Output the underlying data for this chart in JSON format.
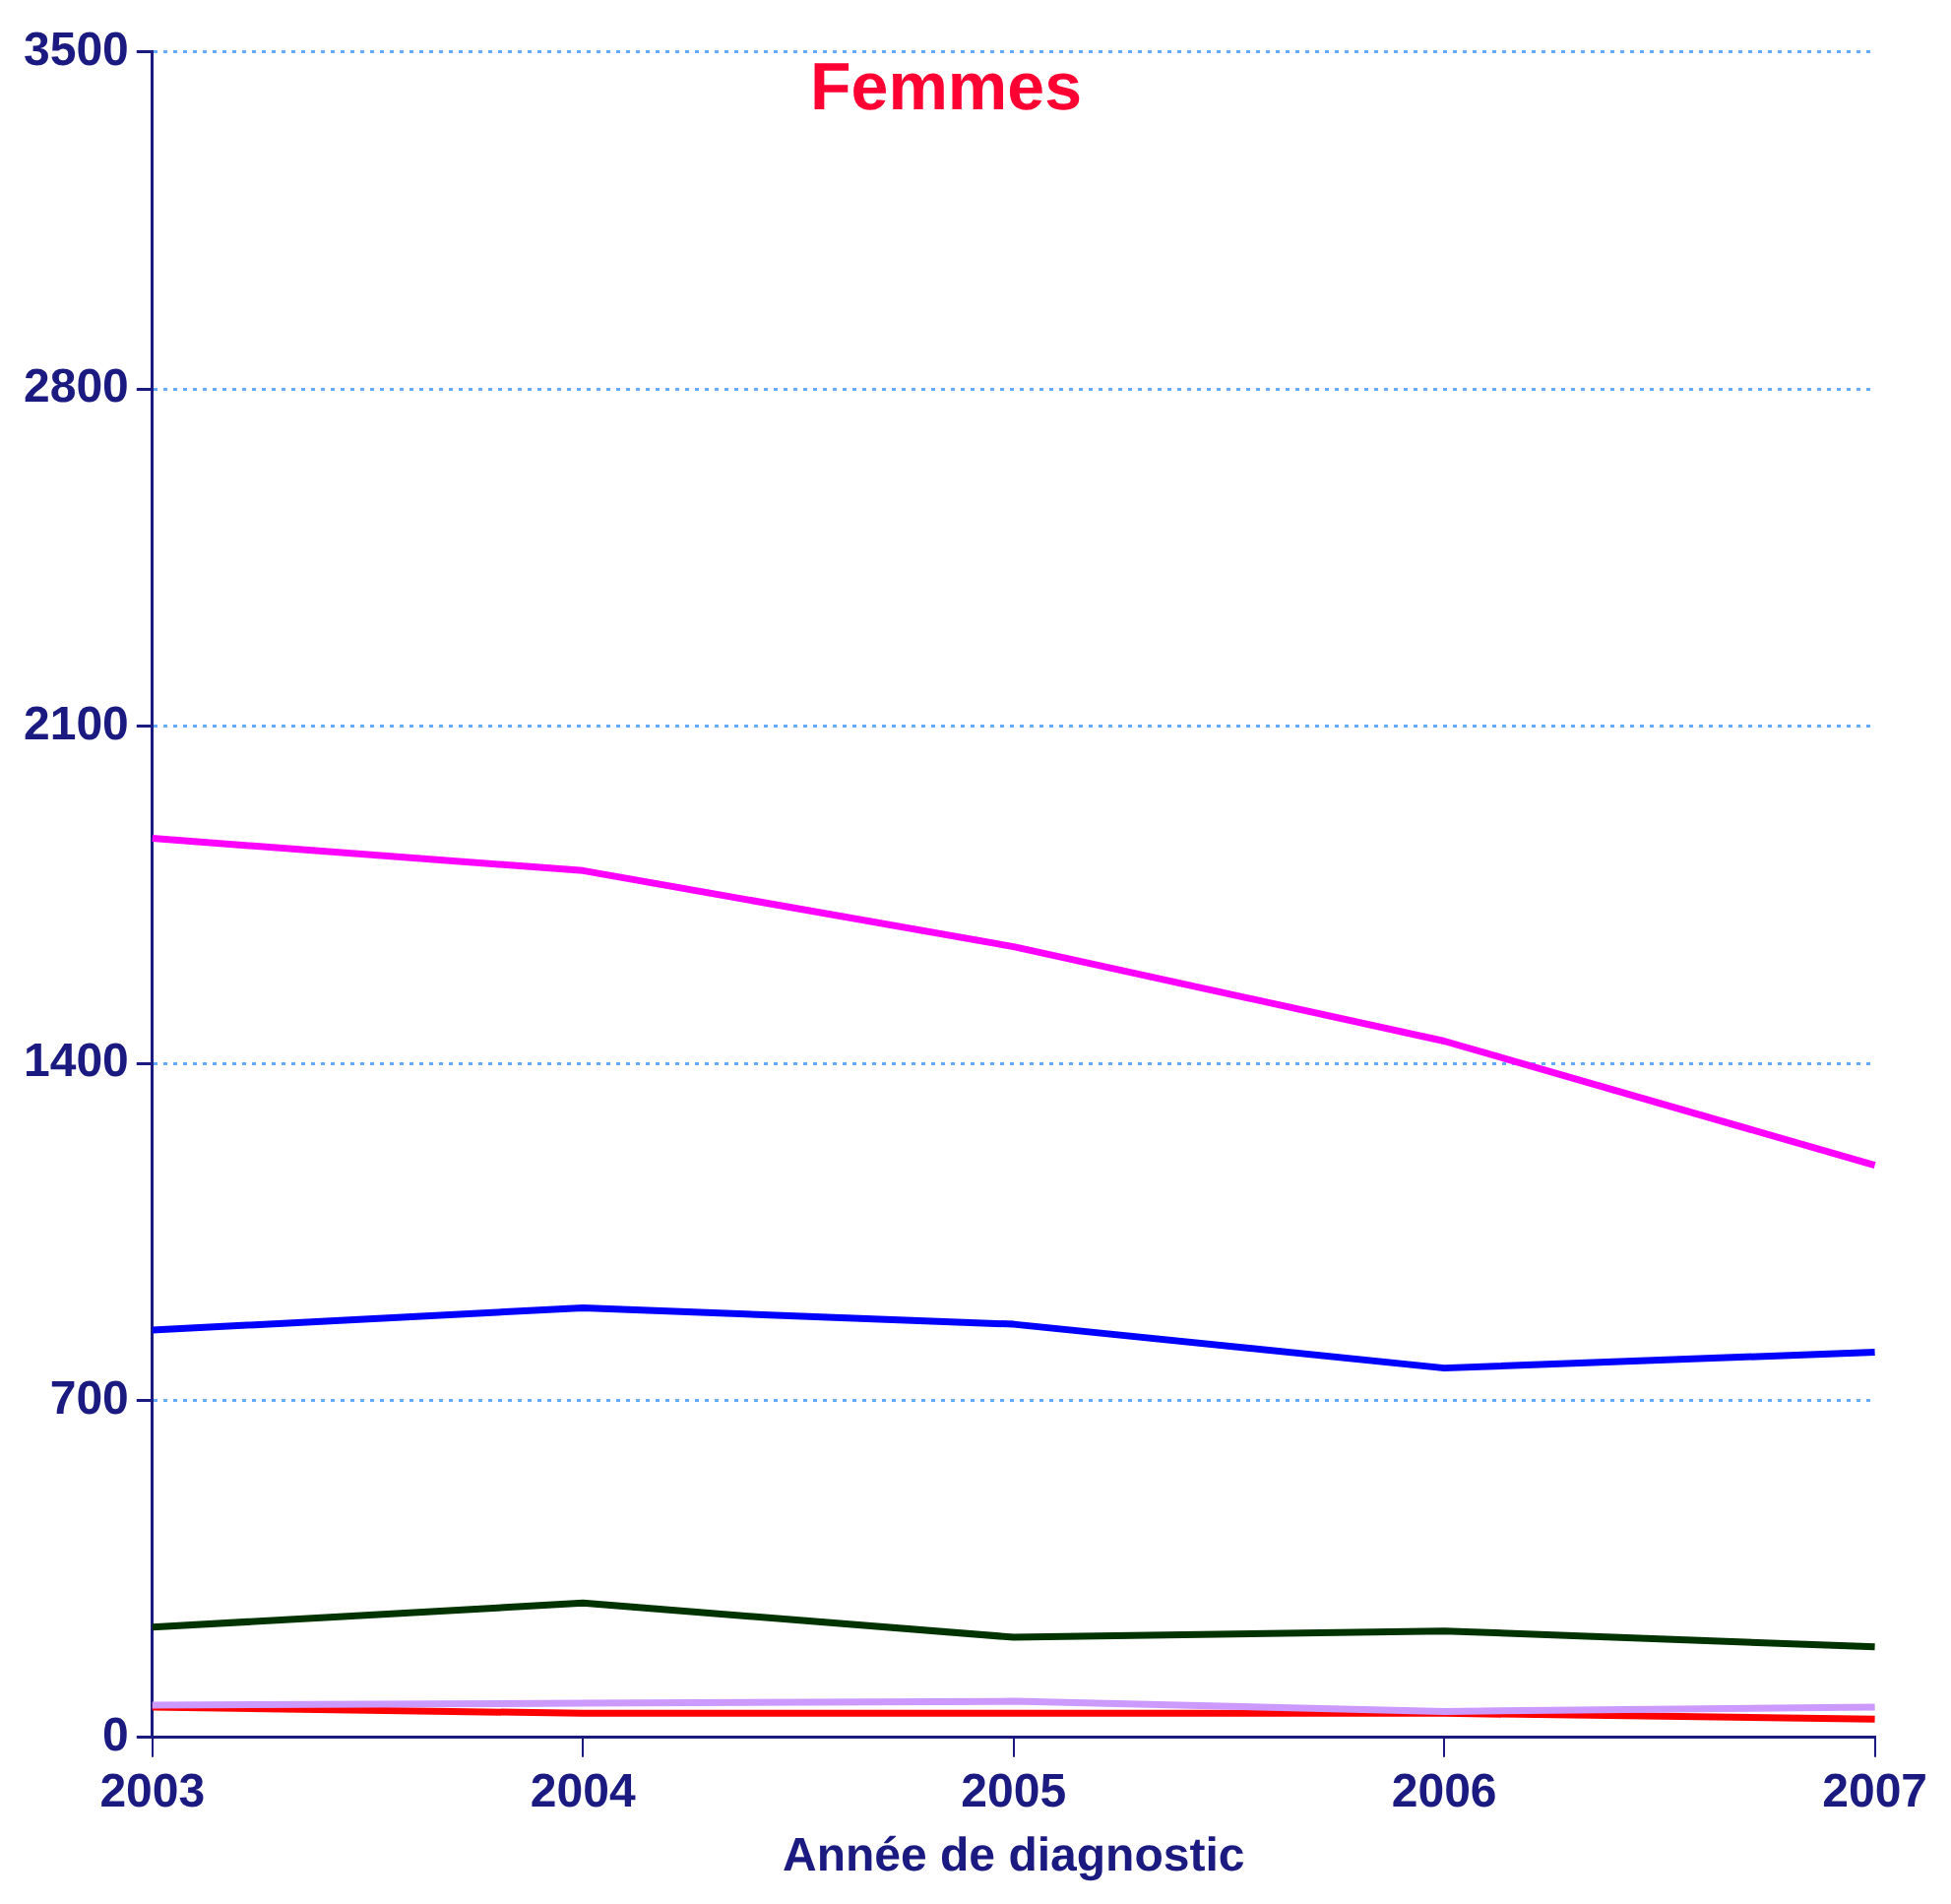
{
  "chart_data": {
    "type": "line",
    "title": "Femmes",
    "xlabel": "Année de diagnostic",
    "categories": [
      "2003",
      "2004",
      "2005",
      "2006",
      "2007"
    ],
    "series": [
      {
        "color": "#ff00ff",
        "values": [
          1867,
          1800,
          1642,
          1446,
          1188
        ]
      },
      {
        "color": "#0000ff",
        "values": [
          846,
          892,
          858,
          767,
          800
        ]
      },
      {
        "color": "#003300",
        "values": [
          229,
          279,
          208,
          221,
          188
        ]
      },
      {
        "color": "#cc99ff",
        "values": [
          67,
          71,
          75,
          54,
          63
        ]
      },
      {
        "color": "#ff0000",
        "values": [
          63,
          50,
          50,
          50,
          38
        ]
      }
    ],
    "ylim": [
      0,
      3500
    ],
    "yticks": [
      0,
      700,
      1400,
      2100,
      2800,
      3500
    ],
    "grid": "y",
    "legend": false,
    "marker": "none",
    "line_style": "solid"
  }
}
